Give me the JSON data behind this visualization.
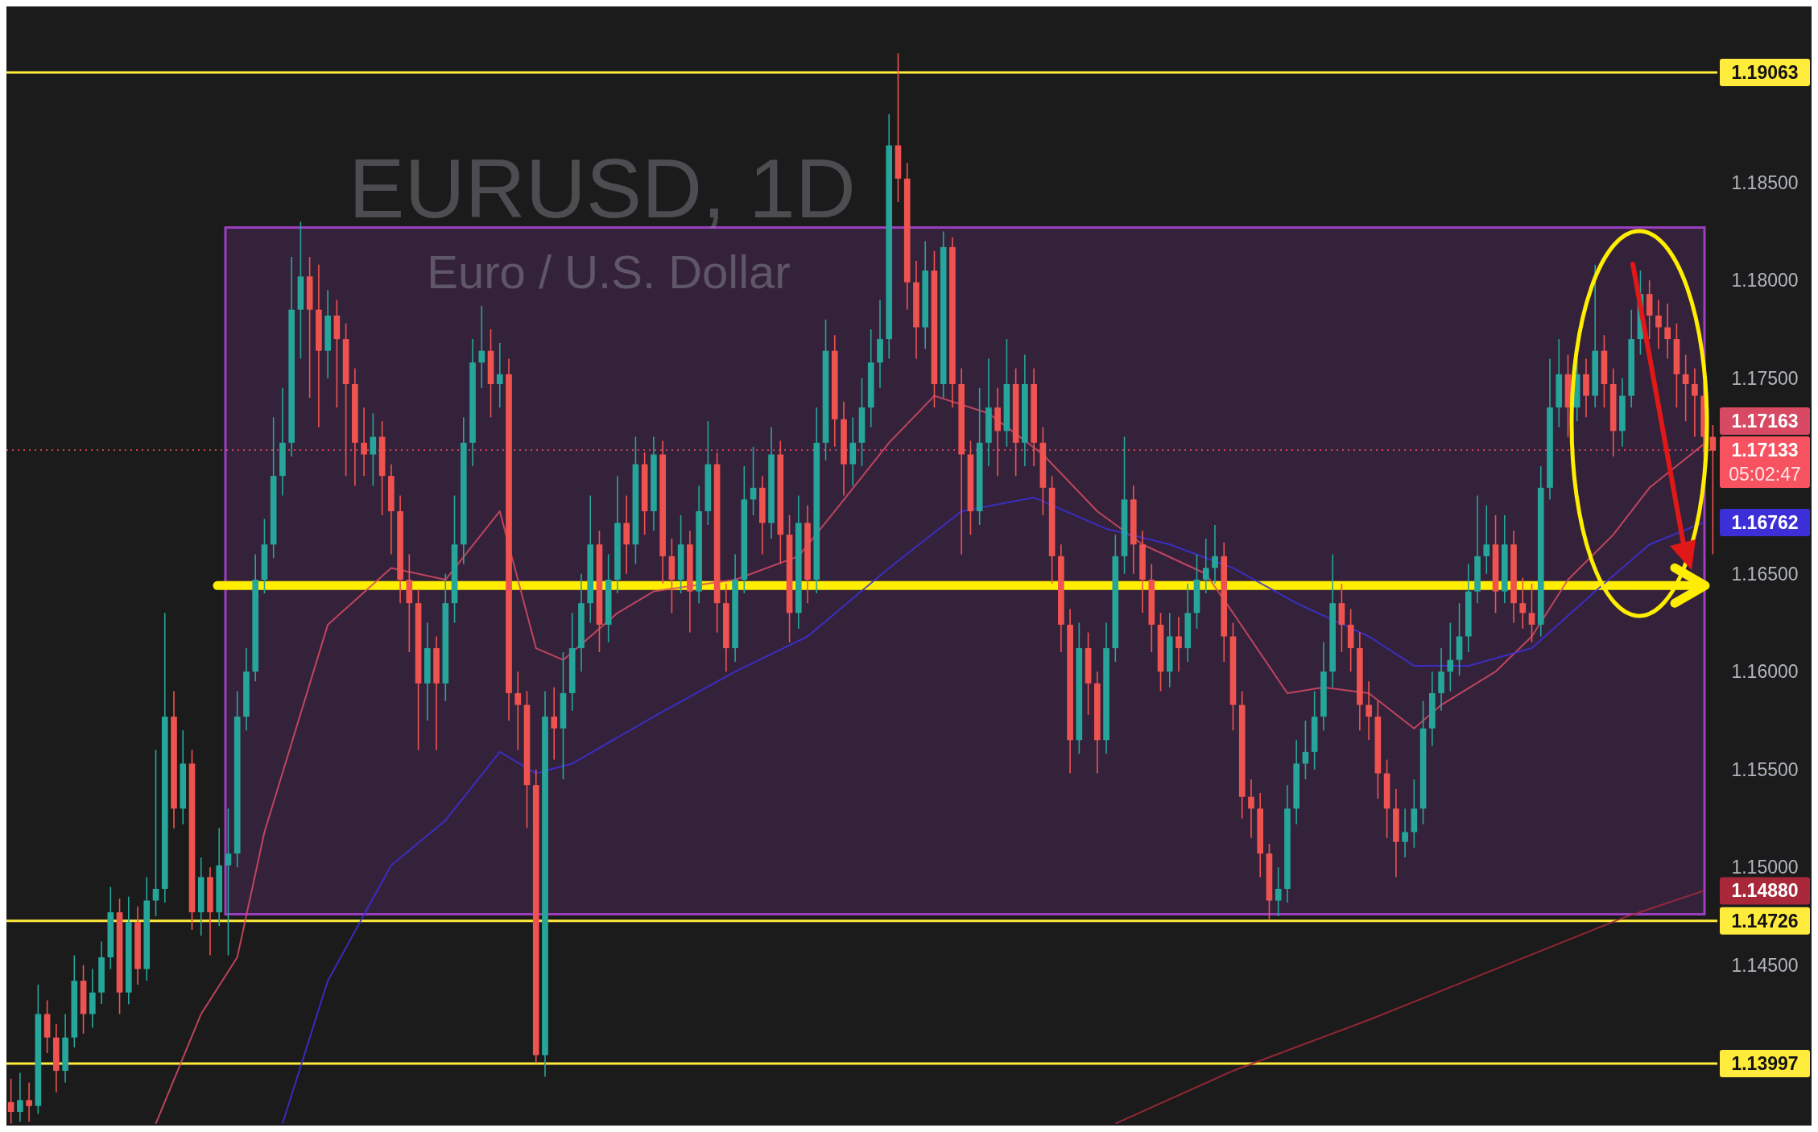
{
  "chart_data": {
    "type": "candlestick",
    "title": "EURUSD, 1D",
    "subtitle": "Euro / U.S. Dollar",
    "categories": [
      null,
      null,
      null,
      null,
      null,
      null,
      null,
      null,
      null,
      null,
      null,
      null,
      null,
      null,
      null,
      null,
      null,
      null,
      null,
      null,
      null,
      null,
      null,
      null,
      null,
      null,
      null,
      null,
      null,
      null,
      null,
      null,
      null,
      null,
      null,
      null,
      null,
      null,
      null,
      null,
      null,
      null,
      null,
      null,
      null,
      null,
      null,
      null,
      null,
      null,
      null,
      null,
      null,
      null,
      null,
      null,
      null,
      null,
      null,
      null,
      null,
      null,
      null,
      null,
      null,
      null,
      null,
      null,
      null,
      null,
      null,
      null,
      null,
      null,
      null,
      null,
      null,
      null,
      null,
      null,
      null,
      null,
      null,
      null,
      null,
      null,
      null,
      null,
      null,
      null,
      null,
      null,
      null,
      null,
      null,
      null,
      null,
      null,
      null,
      null,
      null,
      null,
      null,
      null,
      null,
      null,
      null,
      null,
      null,
      null,
      null,
      null,
      null,
      null,
      null,
      null,
      null,
      null,
      null,
      null,
      null,
      null,
      null,
      null,
      null,
      null,
      null,
      null,
      null,
      null,
      null,
      null,
      null,
      null,
      null,
      null,
      null,
      null,
      null,
      null,
      null,
      null,
      null,
      null,
      null,
      null,
      null,
      null,
      null,
      null,
      null,
      null,
      null,
      null,
      null,
      null,
      null,
      null,
      null,
      null,
      null,
      null,
      null,
      null,
      null,
      null,
      null,
      null,
      null,
      null,
      null,
      null,
      null,
      null,
      null,
      null,
      null,
      null,
      null,
      null,
      null,
      null,
      null,
      null,
      null,
      null,
      null,
      null,
      null
    ],
    "ohlc": [
      [
        1.138,
        1.1392,
        1.1369,
        1.1375
      ],
      [
        1.1375,
        1.1395,
        1.137,
        1.1381
      ],
      [
        1.1381,
        1.139,
        1.137,
        1.1378
      ],
      [
        1.1378,
        1.144,
        1.1374,
        1.1425
      ],
      [
        1.1425,
        1.1432,
        1.1405,
        1.1413
      ],
      [
        1.1413,
        1.142,
        1.1385,
        1.1396
      ],
      [
        1.1396,
        1.1425,
        1.139,
        1.1413
      ],
      [
        1.1413,
        1.1455,
        1.1408,
        1.1442
      ],
      [
        1.1442,
        1.145,
        1.1415,
        1.1425
      ],
      [
        1.1425,
        1.1448,
        1.1418,
        1.1436
      ],
      [
        1.1436,
        1.1462,
        1.143,
        1.1454
      ],
      [
        1.1454,
        1.149,
        1.1448,
        1.1477
      ],
      [
        1.1477,
        1.1484,
        1.1425,
        1.1436
      ],
      [
        1.1436,
        1.1485,
        1.143,
        1.1472
      ],
      [
        1.1472,
        1.148,
        1.144,
        1.1448
      ],
      [
        1.1448,
        1.1495,
        1.1442,
        1.1483
      ],
      [
        1.1483,
        1.156,
        1.1475,
        1.1489
      ],
      [
        1.1489,
        1.163,
        1.1482,
        1.1577
      ],
      [
        1.1577,
        1.159,
        1.152,
        1.153
      ],
      [
        1.153,
        1.157,
        1.1522,
        1.1553
      ],
      [
        1.1553,
        1.156,
        1.1468,
        1.1477
      ],
      [
        1.1477,
        1.1505,
        1.1465,
        1.1495
      ],
      [
        1.1495,
        1.15,
        1.1455,
        1.1477
      ],
      [
        1.1477,
        1.152,
        1.147,
        1.1501
      ],
      [
        1.1501,
        1.153,
        1.1455,
        1.1507
      ],
      [
        1.1507,
        1.159,
        1.15,
        1.1577
      ],
      [
        1.1577,
        1.1612,
        1.157,
        1.16
      ],
      [
        1.16,
        1.166,
        1.1595,
        1.1647
      ],
      [
        1.1647,
        1.1678,
        1.164,
        1.1665
      ],
      [
        1.1665,
        1.173,
        1.1658,
        1.17
      ],
      [
        1.17,
        1.1745,
        1.169,
        1.1717
      ],
      [
        1.1717,
        1.1812,
        1.171,
        1.1785
      ],
      [
        1.1785,
        1.183,
        1.176,
        1.1802
      ],
      [
        1.1802,
        1.1812,
        1.174,
        1.1785
      ],
      [
        1.1785,
        1.1808,
        1.1725,
        1.1764
      ],
      [
        1.1764,
        1.1795,
        1.175,
        1.1782
      ],
      [
        1.1782,
        1.179,
        1.1735,
        1.177
      ],
      [
        1.177,
        1.1778,
        1.17,
        1.1747
      ],
      [
        1.1747,
        1.1755,
        1.1695,
        1.1717
      ],
      [
        1.1717,
        1.1735,
        1.17,
        1.1711
      ],
      [
        1.1711,
        1.1732,
        1.1695,
        1.172
      ],
      [
        1.172,
        1.1728,
        1.168,
        1.17
      ],
      [
        1.17,
        1.1706,
        1.166,
        1.1682
      ],
      [
        1.1682,
        1.169,
        1.1635,
        1.1647
      ],
      [
        1.1647,
        1.166,
        1.161,
        1.1635
      ],
      [
        1.1635,
        1.1642,
        1.156,
        1.1594
      ],
      [
        1.1594,
        1.1625,
        1.1575,
        1.1612
      ],
      [
        1.1612,
        1.1618,
        1.156,
        1.1594
      ],
      [
        1.1594,
        1.165,
        1.1585,
        1.1635
      ],
      [
        1.1635,
        1.169,
        1.1625,
        1.1665
      ],
      [
        1.1665,
        1.173,
        1.1655,
        1.1717
      ],
      [
        1.1717,
        1.177,
        1.1705,
        1.1758
      ],
      [
        1.1758,
        1.1787,
        1.1745,
        1.1764
      ],
      [
        1.1764,
        1.1775,
        1.173,
        1.1747
      ],
      [
        1.1747,
        1.1768,
        1.1735,
        1.1752
      ],
      [
        1.1752,
        1.176,
        1.1575,
        1.1589
      ],
      [
        1.1589,
        1.16,
        1.156,
        1.1583
      ],
      [
        1.1583,
        1.159,
        1.152,
        1.1542
      ],
      [
        1.1542,
        1.155,
        1.14,
        1.1404
      ],
      [
        1.1404,
        1.159,
        1.1393,
        1.1577
      ],
      [
        1.1577,
        1.1592,
        1.1555,
        1.1571
      ],
      [
        1.1571,
        1.161,
        1.1545,
        1.1589
      ],
      [
        1.1589,
        1.163,
        1.158,
        1.1612
      ],
      [
        1.1612,
        1.165,
        1.16,
        1.1635
      ],
      [
        1.1635,
        1.169,
        1.1625,
        1.1665
      ],
      [
        1.1665,
        1.1672,
        1.161,
        1.1624
      ],
      [
        1.1624,
        1.166,
        1.1615,
        1.1647
      ],
      [
        1.1647,
        1.17,
        1.164,
        1.1676
      ],
      [
        1.1676,
        1.169,
        1.165,
        1.1665
      ],
      [
        1.1665,
        1.172,
        1.1655,
        1.1706
      ],
      [
        1.1706,
        1.1712,
        1.167,
        1.1682
      ],
      [
        1.1682,
        1.172,
        1.1672,
        1.1711
      ],
      [
        1.1711,
        1.1718,
        1.1645,
        1.1659
      ],
      [
        1.1659,
        1.1668,
        1.163,
        1.1647
      ],
      [
        1.1647,
        1.168,
        1.164,
        1.1665
      ],
      [
        1.1665,
        1.1672,
        1.162,
        1.1641
      ],
      [
        1.1641,
        1.1695,
        1.1635,
        1.1682
      ],
      [
        1.1682,
        1.1728,
        1.1675,
        1.1706
      ],
      [
        1.1706,
        1.1712,
        1.162,
        1.1635
      ],
      [
        1.1635,
        1.1645,
        1.16,
        1.1612
      ],
      [
        1.1612,
        1.166,
        1.1605,
        1.1647
      ],
      [
        1.1647,
        1.1705,
        1.164,
        1.1688
      ],
      [
        1.1688,
        1.1715,
        1.168,
        1.1694
      ],
      [
        1.1694,
        1.17,
        1.166,
        1.1676
      ],
      [
        1.1676,
        1.1725,
        1.1668,
        1.1711
      ],
      [
        1.1711,
        1.1718,
        1.1655,
        1.167
      ],
      [
        1.167,
        1.168,
        1.1615,
        1.163
      ],
      [
        1.163,
        1.169,
        1.1622,
        1.1676
      ],
      [
        1.1676,
        1.1685,
        1.1635,
        1.1647
      ],
      [
        1.1647,
        1.1735,
        1.164,
        1.1717
      ],
      [
        1.1717,
        1.178,
        1.1708,
        1.1764
      ],
      [
        1.1764,
        1.1772,
        1.1715,
        1.1729
      ],
      [
        1.1729,
        1.1738,
        1.169,
        1.1706
      ],
      [
        1.1706,
        1.173,
        1.1695,
        1.1717
      ],
      [
        1.1717,
        1.175,
        1.1705,
        1.1735
      ],
      [
        1.1735,
        1.1775,
        1.1725,
        1.1758
      ],
      [
        1.1758,
        1.179,
        1.1745,
        1.177
      ],
      [
        1.177,
        1.1885,
        1.176,
        1.1869
      ],
      [
        1.1869,
        1.1916,
        1.184,
        1.1852
      ],
      [
        1.1852,
        1.186,
        1.1785,
        1.1799
      ],
      [
        1.1799,
        1.181,
        1.176,
        1.1776
      ],
      [
        1.1776,
        1.182,
        1.1765,
        1.1805
      ],
      [
        1.1805,
        1.1815,
        1.1735,
        1.1747
      ],
      [
        1.1747,
        1.1825,
        1.174,
        1.1817
      ],
      [
        1.1817,
        1.1822,
        1.1735,
        1.1747
      ],
      [
        1.1747,
        1.1755,
        1.166,
        1.1711
      ],
      [
        1.1711,
        1.1718,
        1.167,
        1.1682
      ],
      [
        1.1682,
        1.1745,
        1.1675,
        1.1717
      ],
      [
        1.1717,
        1.176,
        1.1705,
        1.1735
      ],
      [
        1.1735,
        1.1745,
        1.17,
        1.1723
      ],
      [
        1.1723,
        1.177,
        1.1715,
        1.1747
      ],
      [
        1.1747,
        1.1755,
        1.17,
        1.1717
      ],
      [
        1.1717,
        1.1762,
        1.1705,
        1.1747
      ],
      [
        1.1747,
        1.1755,
        1.1705,
        1.1717
      ],
      [
        1.1717,
        1.1725,
        1.168,
        1.1694
      ],
      [
        1.1694,
        1.17,
        1.1645,
        1.1659
      ],
      [
        1.1659,
        1.1665,
        1.161,
        1.1624
      ],
      [
        1.1624,
        1.1632,
        1.1548,
        1.1565
      ],
      [
        1.1565,
        1.1625,
        1.1558,
        1.1612
      ],
      [
        1.1612,
        1.162,
        1.1578,
        1.1594
      ],
      [
        1.1594,
        1.16,
        1.1548,
        1.1565
      ],
      [
        1.1565,
        1.1625,
        1.1558,
        1.1612
      ],
      [
        1.1612,
        1.167,
        1.1605,
        1.1659
      ],
      [
        1.1659,
        1.172,
        1.165,
        1.1688
      ],
      [
        1.1688,
        1.1695,
        1.165,
        1.1665
      ],
      [
        1.1665,
        1.1672,
        1.163,
        1.1647
      ],
      [
        1.1647,
        1.1655,
        1.161,
        1.1624
      ],
      [
        1.1624,
        1.163,
        1.159,
        1.16
      ],
      [
        1.16,
        1.163,
        1.1592,
        1.1618
      ],
      [
        1.1618,
        1.1628,
        1.16,
        1.1612
      ],
      [
        1.1612,
        1.1645,
        1.1605,
        1.163
      ],
      [
        1.163,
        1.166,
        1.1622,
        1.1647
      ],
      [
        1.1647,
        1.1668,
        1.164,
        1.1653
      ],
      [
        1.1653,
        1.1675,
        1.1645,
        1.1659
      ],
      [
        1.1659,
        1.1666,
        1.1605,
        1.1618
      ],
      [
        1.1618,
        1.1625,
        1.157,
        1.1583
      ],
      [
        1.1583,
        1.159,
        1.1525,
        1.1536
      ],
      [
        1.1536,
        1.1545,
        1.1515,
        1.153
      ],
      [
        1.153,
        1.1538,
        1.1495,
        1.1507
      ],
      [
        1.1507,
        1.1512,
        1.1473,
        1.1483
      ],
      [
        1.1483,
        1.15,
        1.1475,
        1.1489
      ],
      [
        1.1489,
        1.1542,
        1.1482,
        1.153
      ],
      [
        1.153,
        1.1565,
        1.1522,
        1.1553
      ],
      [
        1.1553,
        1.1575,
        1.1545,
        1.1559
      ],
      [
        1.1559,
        1.159,
        1.155,
        1.1577
      ],
      [
        1.1577,
        1.1615,
        1.157,
        1.16
      ],
      [
        1.16,
        1.166,
        1.1592,
        1.1635
      ],
      [
        1.1635,
        1.1645,
        1.161,
        1.1624
      ],
      [
        1.1624,
        1.1632,
        1.16,
        1.1612
      ],
      [
        1.1612,
        1.162,
        1.157,
        1.1583
      ],
      [
        1.1583,
        1.1595,
        1.1565,
        1.1577
      ],
      [
        1.1577,
        1.1585,
        1.1535,
        1.1548
      ],
      [
        1.1548,
        1.1555,
        1.1515,
        1.153
      ],
      [
        1.153,
        1.154,
        1.1495,
        1.1513
      ],
      [
        1.1513,
        1.153,
        1.1505,
        1.1518
      ],
      [
        1.1518,
        1.1545,
        1.151,
        1.153
      ],
      [
        1.153,
        1.1585,
        1.1522,
        1.1571
      ],
      [
        1.1571,
        1.16,
        1.1562,
        1.1589
      ],
      [
        1.1589,
        1.1612,
        1.158,
        1.16
      ],
      [
        1.16,
        1.1625,
        1.159,
        1.1606
      ],
      [
        1.1606,
        1.1635,
        1.1598,
        1.1618
      ],
      [
        1.1618,
        1.1655,
        1.161,
        1.1641
      ],
      [
        1.1641,
        1.169,
        1.1635,
        1.1659
      ],
      [
        1.1659,
        1.1685,
        1.165,
        1.1665
      ],
      [
        1.1665,
        1.168,
        1.163,
        1.1641
      ],
      [
        1.1641,
        1.168,
        1.1635,
        1.1665
      ],
      [
        1.1665,
        1.1672,
        1.1625,
        1.1635
      ],
      [
        1.1635,
        1.1648,
        1.1622,
        1.163
      ],
      [
        1.163,
        1.1645,
        1.1615,
        1.1624
      ],
      [
        1.1624,
        1.1705,
        1.1618,
        1.1694
      ],
      [
        1.1694,
        1.176,
        1.1688,
        1.1735
      ],
      [
        1.1735,
        1.177,
        1.1725,
        1.1752
      ],
      [
        1.1752,
        1.1762,
        1.172,
        1.1735
      ],
      [
        1.1735,
        1.176,
        1.1728,
        1.1752
      ],
      [
        1.1752,
        1.176,
        1.173,
        1.1741
      ],
      [
        1.1741,
        1.1808,
        1.1735,
        1.1764
      ],
      [
        1.1764,
        1.1772,
        1.1735,
        1.1747
      ],
      [
        1.1747,
        1.1755,
        1.171,
        1.1723
      ],
      [
        1.1723,
        1.175,
        1.1715,
        1.1741
      ],
      [
        1.1741,
        1.1785,
        1.1735,
        1.177
      ],
      [
        1.177,
        1.1805,
        1.1762,
        1.1793
      ],
      [
        1.1793,
        1.18,
        1.177,
        1.1782
      ],
      [
        1.1782,
        1.179,
        1.1765,
        1.1776
      ],
      [
        1.1776,
        1.1788,
        1.176,
        1.177
      ],
      [
        1.177,
        1.1778,
        1.1735,
        1.1752
      ],
      [
        1.1752,
        1.1762,
        1.1728,
        1.1747
      ],
      [
        1.1747,
        1.1755,
        1.172,
        1.1741
      ],
      [
        1.1741,
        1.1748,
        1.1712,
        1.172
      ],
      [
        1.172,
        1.1726,
        1.166,
        1.1713
      ]
    ],
    "series": [
      {
        "type": "line",
        "color": "#d84a64",
        "values": [
          null,
          null,
          null,
          null,
          null,
          null,
          null,
          null,
          null,
          null,
          null,
          null,
          null,
          null,
          null,
          null,
          1.1369,
          null,
          null,
          null,
          null,
          1.1425,
          null,
          null,
          null,
          1.1454,
          null,
          null,
          1.1518,
          null,
          null,
          null,
          null,
          null,
          null,
          1.1624,
          null,
          null,
          null,
          null,
          null,
          null,
          1.1653,
          null,
          null,
          null,
          null,
          null,
          1.1647,
          null,
          null,
          null,
          null,
          null,
          1.1682,
          null,
          null,
          null,
          1.1612,
          null,
          null,
          1.1606,
          null,
          null,
          null,
          null,
          null,
          1.163,
          null,
          null,
          null,
          1.1641,
          null,
          null,
          null,
          null,
          null,
          null,
          null,
          null,
          1.1647,
          null,
          null,
          null,
          null,
          null,
          null,
          1.1659,
          null,
          null,
          null,
          1.1682,
          null,
          null,
          null,
          null,
          null,
          1.1717,
          null,
          null,
          null,
          null,
          1.1741,
          null,
          null,
          null,
          null,
          null,
          1.1732,
          null,
          null,
          null,
          null,
          null,
          1.1711,
          null,
          null,
          null,
          null,
          null,
          1.1682,
          null,
          null,
          null,
          null,
          1.1665,
          null,
          null,
          null,
          null,
          null,
          null,
          1.165,
          null,
          null,
          1.163,
          null,
          null,
          null,
          null,
          null,
          1.1589,
          null,
          null,
          null,
          1.1592,
          null,
          null,
          null,
          null,
          1.1589,
          null,
          null,
          null,
          null,
          1.1571,
          null,
          null,
          1.1583,
          null,
          null,
          null,
          null,
          null,
          1.16,
          null,
          null,
          null,
          1.1618,
          null,
          null,
          null,
          1.1647,
          null,
          null,
          null,
          null,
          1.167,
          null,
          null,
          null,
          1.1694,
          null,
          null,
          null,
          null,
          null,
          1.17163,
          null
        ],
        "value_labels": [
          null,
          null,
          null,
          null,
          null,
          null,
          null,
          null,
          null,
          null,
          null,
          null,
          null,
          null,
          null,
          null,
          null,
          null,
          null,
          null,
          null,
          null,
          null,
          null,
          null,
          null,
          null,
          null,
          null,
          null,
          null,
          null,
          null,
          null,
          null,
          null,
          null,
          null,
          null,
          null,
          null,
          null,
          null,
          null,
          null,
          null,
          null,
          null,
          null,
          null,
          null,
          null,
          null,
          null,
          null,
          null,
          null,
          null,
          null,
          null,
          null,
          null,
          null,
          null,
          null,
          null,
          null,
          null,
          null,
          null,
          null,
          null,
          null,
          null,
          null,
          null,
          null,
          null,
          null,
          null,
          null,
          null,
          null,
          null,
          null,
          null,
          null,
          null,
          null,
          null,
          null,
          null,
          null,
          null,
          null,
          null,
          null,
          null,
          null,
          null,
          null,
          null,
          null,
          null,
          null,
          null,
          null,
          null,
          null,
          null,
          null,
          null,
          null,
          null,
          null,
          null,
          null,
          null,
          null,
          null,
          null,
          null,
          null,
          null,
          null,
          null,
          null,
          null,
          null,
          null,
          null,
          null,
          null,
          null,
          null,
          null,
          null,
          null,
          null,
          null,
          null,
          null,
          null,
          null,
          null,
          null,
          null,
          null,
          null,
          null,
          null,
          null,
          null,
          null,
          null,
          null,
          null,
          null,
          null,
          null,
          null,
          null,
          null,
          null,
          null,
          null,
          null,
          null,
          null,
          null,
          null,
          null,
          null,
          null,
          null,
          null,
          null,
          null,
          null,
          null,
          null,
          null,
          null,
          null,
          null,
          null,
          null,
          "1.17163",
          null
        ]
      },
      {
        "type": "line",
        "color": "#3d2fd8",
        "values": [
          null,
          null,
          null,
          null,
          null,
          null,
          null,
          null,
          null,
          null,
          null,
          null,
          null,
          null,
          null,
          null,
          null,
          null,
          null,
          null,
          null,
          null,
          null,
          null,
          null,
          null,
          null,
          null,
          null,
          null,
          1.1369,
          null,
          null,
          null,
          null,
          1.1442,
          null,
          null,
          null,
          null,
          null,
          null,
          1.1501,
          null,
          null,
          null,
          null,
          null,
          1.1524,
          null,
          null,
          null,
          null,
          null,
          1.1559,
          null,
          null,
          null,
          1.1548,
          null,
          null,
          null,
          1.1553,
          null,
          null,
          null,
          null,
          null,
          null,
          null,
          null,
          1.1577,
          null,
          null,
          null,
          null,
          null,
          null,
          null,
          null,
          1.16,
          null,
          null,
          null,
          null,
          null,
          null,
          null,
          1.1618,
          null,
          null,
          null,
          null,
          null,
          null,
          null,
          null,
          1.1653,
          null,
          null,
          null,
          null,
          null,
          null,
          null,
          1.1682,
          null,
          null,
          null,
          null,
          null,
          null,
          null,
          1.1689,
          null,
          null,
          null,
          null,
          null,
          null,
          null,
          1.1673,
          null,
          null,
          null,
          null,
          null,
          null,
          1.1665,
          null,
          null,
          null,
          null,
          null,
          null,
          1.1653,
          null,
          null,
          null,
          null,
          null,
          null,
          1.1635,
          null,
          null,
          null,
          null,
          null,
          null,
          null,
          1.1618,
          null,
          null,
          null,
          null,
          1.1603,
          null,
          null,
          null,
          null,
          null,
          1.1603,
          null,
          null,
          null,
          null,
          null,
          null,
          1.1612,
          null,
          null,
          null,
          null,
          null,
          null,
          1.1641,
          null,
          null,
          null,
          null,
          null,
          1.1665,
          null,
          null,
          null,
          null,
          null,
          1.16762,
          null
        ],
        "value_labels": [
          null,
          null,
          null,
          null,
          null,
          null,
          null,
          null,
          null,
          null,
          null,
          null,
          null,
          null,
          null,
          null,
          null,
          null,
          null,
          null,
          null,
          null,
          null,
          null,
          null,
          null,
          null,
          null,
          null,
          null,
          null,
          null,
          null,
          null,
          null,
          null,
          null,
          null,
          null,
          null,
          null,
          null,
          null,
          null,
          null,
          null,
          null,
          null,
          null,
          null,
          null,
          null,
          null,
          null,
          null,
          null,
          null,
          null,
          null,
          null,
          null,
          null,
          null,
          null,
          null,
          null,
          null,
          null,
          null,
          null,
          null,
          null,
          null,
          null,
          null,
          null,
          null,
          null,
          null,
          null,
          null,
          null,
          null,
          null,
          null,
          null,
          null,
          null,
          null,
          null,
          null,
          null,
          null,
          null,
          null,
          null,
          null,
          null,
          null,
          null,
          null,
          null,
          null,
          null,
          null,
          null,
          null,
          null,
          null,
          null,
          null,
          null,
          null,
          null,
          null,
          null,
          null,
          null,
          null,
          null,
          null,
          null,
          null,
          null,
          null,
          null,
          null,
          null,
          null,
          null,
          null,
          null,
          null,
          null,
          null,
          null,
          null,
          null,
          null,
          null,
          null,
          null,
          null,
          null,
          null,
          null,
          null,
          null,
          null,
          null,
          null,
          null,
          null,
          null,
          null,
          null,
          null,
          null,
          null,
          null,
          null,
          null,
          null,
          null,
          null,
          null,
          null,
          null,
          null,
          null,
          null,
          null,
          null,
          null,
          null,
          null,
          null,
          null,
          null,
          null,
          null,
          null,
          null,
          null,
          null,
          null,
          null,
          "1.16762",
          null
        ]
      },
      {
        "type": "line",
        "color": "#a8283a",
        "values": [
          null,
          null,
          null,
          null,
          null,
          null,
          null,
          null,
          null,
          null,
          null,
          null,
          null,
          null,
          null,
          null,
          null,
          null,
          null,
          null,
          null,
          null,
          null,
          null,
          null,
          null,
          null,
          null,
          null,
          null,
          null,
          null,
          null,
          null,
          null,
          null,
          null,
          null,
          null,
          null,
          null,
          null,
          null,
          null,
          null,
          null,
          null,
          null,
          null,
          null,
          null,
          null,
          null,
          null,
          null,
          null,
          null,
          null,
          null,
          null,
          null,
          null,
          null,
          null,
          null,
          null,
          null,
          null,
          null,
          null,
          null,
          null,
          null,
          null,
          null,
          null,
          null,
          null,
          null,
          null,
          null,
          null,
          null,
          null,
          null,
          null,
          null,
          null,
          null,
          null,
          null,
          null,
          null,
          null,
          null,
          null,
          null,
          null,
          null,
          null,
          null,
          null,
          null,
          null,
          null,
          null,
          null,
          null,
          null,
          null,
          null,
          null,
          null,
          null,
          null,
          null,
          null,
          null,
          null,
          null,
          null,
          null,
          1.1369,
          null,
          null,
          null,
          null,
          null,
          null,
          null,
          null,
          null,
          null,
          null,
          null,
          1.1396,
          null,
          null,
          null,
          null,
          null,
          null,
          null,
          null,
          null,
          null,
          null,
          null,
          null,
          null,
          1.1422,
          null,
          null,
          null,
          null,
          null,
          null,
          null,
          null,
          null,
          null,
          null,
          null,
          null,
          1.1448,
          null,
          null,
          null,
          null,
          null,
          null,
          null,
          null,
          null,
          null,
          null,
          null,
          null,
          1.1474,
          null,
          null,
          null,
          null,
          null,
          null,
          null,
          null,
          1.1488,
          null
        ],
        "value_labels": [
          null,
          null,
          null,
          null,
          null,
          null,
          null,
          null,
          null,
          null,
          null,
          null,
          null,
          null,
          null,
          null,
          null,
          null,
          null,
          null,
          null,
          null,
          null,
          null,
          null,
          null,
          null,
          null,
          null,
          null,
          null,
          null,
          null,
          null,
          null,
          null,
          null,
          null,
          null,
          null,
          null,
          null,
          null,
          null,
          null,
          null,
          null,
          null,
          null,
          null,
          null,
          null,
          null,
          null,
          null,
          null,
          null,
          null,
          null,
          null,
          null,
          null,
          null,
          null,
          null,
          null,
          null,
          null,
          null,
          null,
          null,
          null,
          null,
          null,
          null,
          null,
          null,
          null,
          null,
          null,
          null,
          null,
          null,
          null,
          null,
          null,
          null,
          null,
          null,
          null,
          null,
          null,
          null,
          null,
          null,
          null,
          null,
          null,
          null,
          null,
          null,
          null,
          null,
          null,
          null,
          null,
          null,
          null,
          null,
          null,
          null,
          null,
          null,
          null,
          null,
          null,
          null,
          null,
          null,
          null,
          null,
          null,
          null,
          null,
          null,
          null,
          null,
          null,
          null,
          null,
          null,
          null,
          null,
          null,
          null,
          null,
          null,
          null,
          null,
          null,
          null,
          null,
          null,
          null,
          null,
          null,
          null,
          null,
          null,
          null,
          null,
          null,
          null,
          null,
          null,
          null,
          null,
          null,
          null,
          null,
          null,
          null,
          null,
          null,
          null,
          null,
          null,
          null,
          null,
          null,
          null,
          null,
          null,
          null,
          null,
          null,
          null,
          null,
          null,
          null,
          null,
          null,
          null,
          null,
          null,
          null,
          null,
          "1.14880",
          null
        ]
      }
    ],
    "ylim": [
      1.1368,
      1.194
    ],
    "yticks": [
      {
        "value": 1.145,
        "label": "1.14500"
      },
      {
        "value": 1.15,
        "label": "1.15000"
      },
      {
        "value": 1.155,
        "label": "1.15500"
      },
      {
        "value": 1.16,
        "label": "1.16000"
      },
      {
        "value": 1.165,
        "label": "1.16500"
      },
      {
        "value": 1.175,
        "label": "1.17500"
      },
      {
        "value": 1.18,
        "label": "1.18000"
      },
      {
        "value": 1.185,
        "label": "1.18500"
      }
    ],
    "tick_labels": "y",
    "bands": [
      {
        "axis": "y",
        "from": 1.1476,
        "to": 1.1827,
        "label": null,
        "color": "#9c3fc0"
      }
    ],
    "ref_lines": [
      {
        "axis": "y",
        "value": 1.19063,
        "label": "1.19063",
        "color": "#ffeb3b"
      },
      {
        "axis": "y",
        "value": 1.14726,
        "label": "1.14726",
        "color": "#ffeb3b"
      },
      {
        "axis": "y",
        "value": 1.13997,
        "label": "1.13997",
        "color": "#ffeb3b"
      },
      {
        "axis": "y",
        "value": 1.1644,
        "label": null,
        "color": "#ffee00"
      },
      {
        "axis": "y",
        "value": 1.17133,
        "label": "1.17133",
        "color": "#f7525f",
        "line_style": "dotted"
      }
    ],
    "annotations": [
      "05:02:47"
    ]
  }
}
